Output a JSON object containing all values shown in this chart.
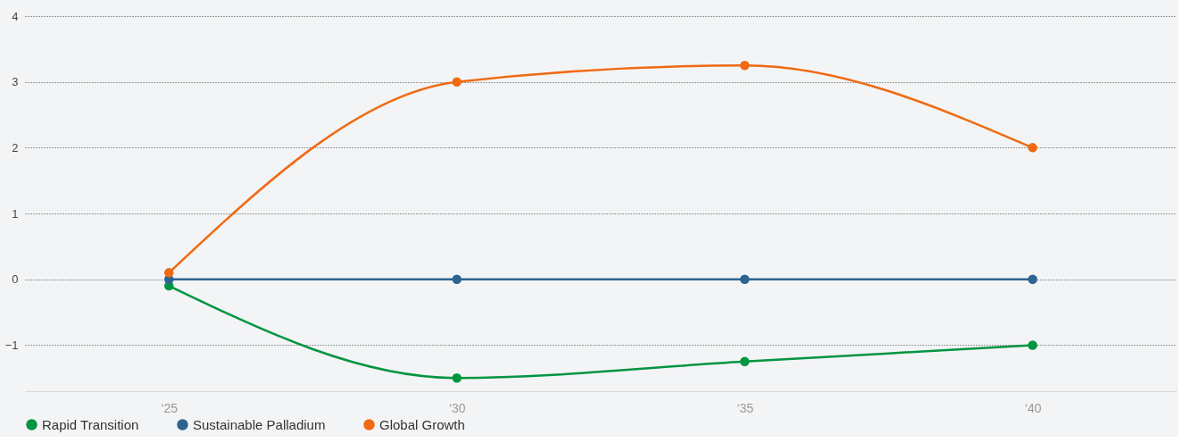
{
  "chart_data": {
    "type": "line",
    "categories": [
      "‘25",
      "‘30",
      "‘35",
      "‘40"
    ],
    "series": [
      {
        "name": "Rapid Transition",
        "color": "#00953f",
        "values": [
          -0.1,
          -1.5,
          -1.25,
          -1
        ]
      },
      {
        "name": "Sustainable Palladium",
        "color": "#2e6490",
        "values": [
          0,
          0,
          0,
          0
        ]
      },
      {
        "name": "Global Growth",
        "color": "#ef6a12",
        "values": [
          0.1,
          3,
          3.25,
          2
        ]
      }
    ],
    "ylim": [
      -1.7,
      4
    ],
    "yticks": [
      -1,
      0,
      1,
      2,
      3,
      4
    ],
    "grid": "y",
    "legend": "bottom left",
    "marker": "circle",
    "line_style": "solid"
  }
}
